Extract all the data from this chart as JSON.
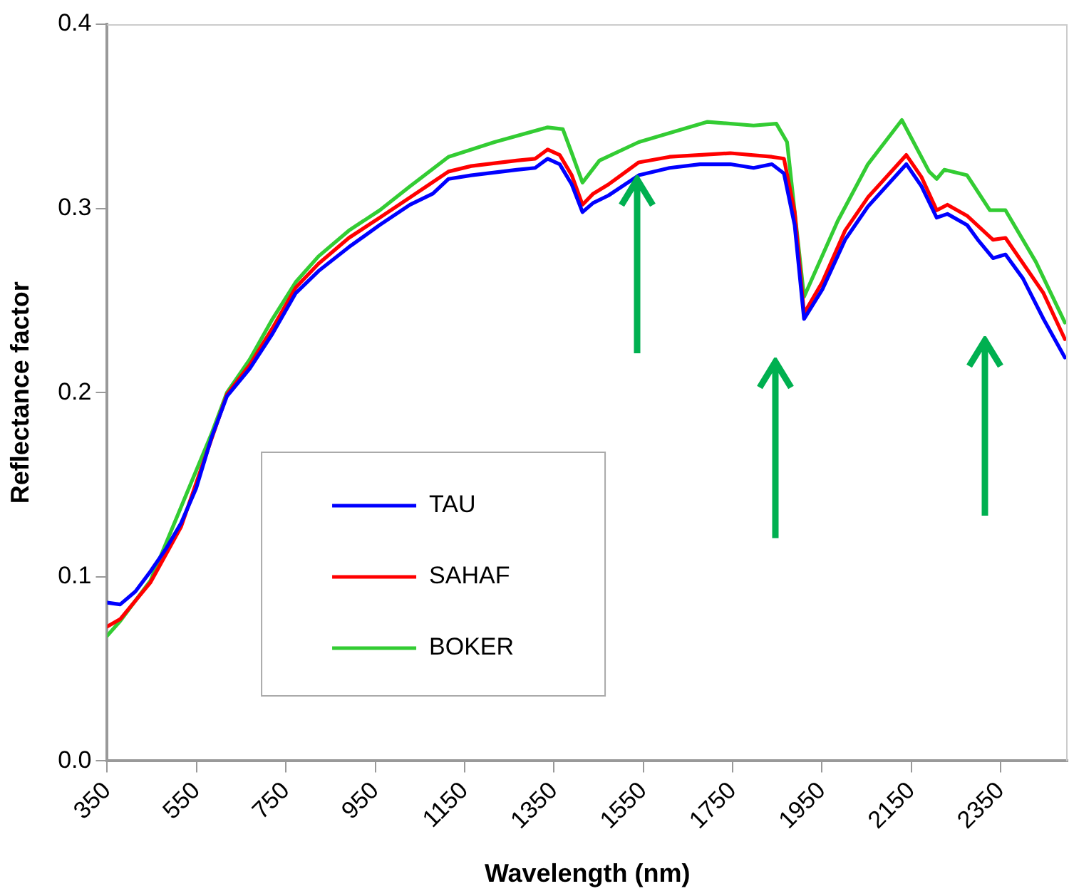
{
  "chart_data": {
    "type": "line",
    "xlabel": "Wavelength (nm)",
    "ylabel": "Reflectance factor",
    "xlim": [
      350,
      2500
    ],
    "xticks": [
      350,
      550,
      750,
      950,
      1150,
      1350,
      1550,
      1750,
      1950,
      2150,
      2350
    ],
    "ylim": [
      0,
      0.4
    ],
    "yticks": [
      {
        "value": 0,
        "label": "0.0"
      },
      {
        "value": 0.1,
        "label": "0.1"
      },
      {
        "value": 0.2,
        "label": "0.2"
      },
      {
        "value": 0.3,
        "label": "0.3"
      },
      {
        "value": 0.4,
        "label": "0.4"
      }
    ],
    "grid": false,
    "legend": "bottom left",
    "marker": "none",
    "line_style": "solid",
    "series": [
      {
        "name": "TAU",
        "color": "#0000ff",
        "x": [
          350,
          379,
          413,
          447,
          481,
          515,
          549,
          584,
          618,
          669,
          720,
          772,
          823,
          891,
          960,
          1028,
          1079,
          1114,
          1165,
          1267,
          1308,
          1336,
          1363,
          1390,
          1414,
          1438,
          1472,
          1540,
          1609,
          1677,
          1745,
          1797,
          1838,
          1865,
          1889,
          1910,
          1951,
          2002,
          2053,
          2139,
          2173,
          2207,
          2231,
          2275,
          2299,
          2333,
          2361,
          2400,
          2446,
          2494
        ],
        "values": [
          0.086,
          0.085,
          0.092,
          0.103,
          0.115,
          0.129,
          0.148,
          0.176,
          0.198,
          0.213,
          0.232,
          0.254,
          0.266,
          0.279,
          0.291,
          0.302,
          0.308,
          0.316,
          0.318,
          0.321,
          0.322,
          0.327,
          0.324,
          0.313,
          0.298,
          0.303,
          0.307,
          0.318,
          0.322,
          0.324,
          0.324,
          0.322,
          0.324,
          0.319,
          0.291,
          0.24,
          0.256,
          0.283,
          0.301,
          0.324,
          0.312,
          0.295,
          0.297,
          0.291,
          0.283,
          0.273,
          0.275,
          0.262,
          0.24,
          0.219
        ]
      },
      {
        "name": "SAHAF",
        "color": "#ff0000",
        "x": [
          350,
          379,
          447,
          515,
          618,
          669,
          720,
          772,
          823,
          891,
          960,
          1028,
          1114,
          1165,
          1267,
          1308,
          1336,
          1363,
          1390,
          1414,
          1438,
          1472,
          1540,
          1609,
          1745,
          1838,
          1865,
          1889,
          1910,
          1951,
          2002,
          2053,
          2139,
          2173,
          2207,
          2231,
          2275,
          2333,
          2361,
          2446,
          2494
        ],
        "values": [
          0.073,
          0.077,
          0.097,
          0.127,
          0.199,
          0.215,
          0.235,
          0.257,
          0.27,
          0.284,
          0.295,
          0.306,
          0.32,
          0.323,
          0.326,
          0.327,
          0.332,
          0.329,
          0.318,
          0.302,
          0.308,
          0.313,
          0.325,
          0.328,
          0.33,
          0.328,
          0.327,
          0.298,
          0.243,
          0.26,
          0.288,
          0.306,
          0.329,
          0.317,
          0.299,
          0.302,
          0.296,
          0.283,
          0.284,
          0.254,
          0.229
        ]
      },
      {
        "name": "BOKER",
        "color": "#33cc33",
        "x": [
          350,
          379,
          447,
          584,
          618,
          669,
          720,
          772,
          823,
          891,
          960,
          1028,
          1114,
          1217,
          1336,
          1370,
          1390,
          1414,
          1452,
          1540,
          1694,
          1797,
          1848,
          1872,
          1910,
          1985,
          2053,
          2129,
          2190,
          2207,
          2224,
          2275,
          2326,
          2361,
          2429,
          2494
        ],
        "values": [
          0.068,
          0.076,
          0.098,
          0.178,
          0.2,
          0.218,
          0.24,
          0.26,
          0.274,
          0.288,
          0.299,
          0.312,
          0.328,
          0.336,
          0.344,
          0.343,
          0.33,
          0.314,
          0.326,
          0.336,
          0.347,
          0.345,
          0.346,
          0.336,
          0.252,
          0.293,
          0.324,
          0.348,
          0.32,
          0.316,
          0.321,
          0.318,
          0.299,
          0.299,
          0.271,
          0.238
        ]
      }
    ]
  }
}
